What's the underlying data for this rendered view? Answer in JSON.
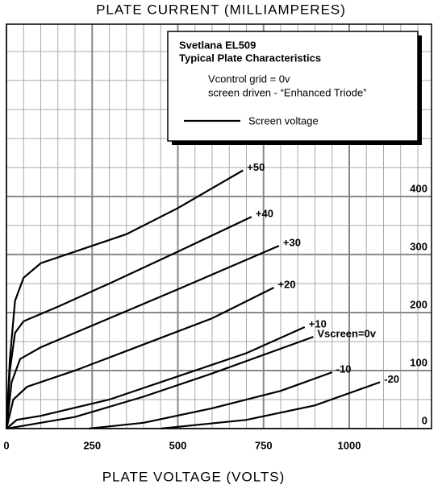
{
  "chart_data": {
    "type": "line",
    "y_label": "PLATE CURRENT (MILLIAMPERES)",
    "x_label": "PLATE VOLTAGE (VOLTS)",
    "xlim": [
      0,
      1240
    ],
    "ylim": [
      0,
      697
    ],
    "xticks": [
      0,
      250,
      500,
      750,
      1000
    ],
    "yticks": [
      0,
      100,
      200,
      300,
      400
    ],
    "grid": true,
    "legend": {
      "title": [
        "Svetlana EL509",
        "Typical Plate Characteristics"
      ],
      "notes": [
        "Vcontrol grid = 0v",
        "screen driven - “Enhanced Triode”"
      ],
      "entry": "Screen voltage"
    },
    "series": [
      {
        "name": "+50",
        "color": "#000000",
        "x": [
          0,
          10,
          25,
          50,
          100,
          200,
          350,
          500,
          690
        ],
        "values": [
          0,
          120,
          220,
          260,
          285,
          305,
          335,
          380,
          445
        ]
      },
      {
        "name": "+40",
        "color": "#000000",
        "x": [
          0,
          10,
          25,
          50,
          150,
          300,
          500,
          715
        ],
        "values": [
          0,
          100,
          165,
          185,
          210,
          250,
          305,
          365
        ]
      },
      {
        "name": "+30",
        "color": "#000000",
        "x": [
          0,
          15,
          40,
          100,
          300,
          500,
          795
        ],
        "values": [
          0,
          80,
          120,
          140,
          190,
          240,
          315
        ]
      },
      {
        "name": "+20",
        "color": "#000000",
        "x": [
          0,
          20,
          60,
          200,
          400,
          600,
          780
        ],
        "values": [
          0,
          50,
          72,
          100,
          145,
          190,
          243
        ]
      },
      {
        "name": "+10",
        "color": "#000000",
        "x": [
          0,
          30,
          100,
          300,
          500,
          700,
          870
        ],
        "values": [
          0,
          15,
          22,
          50,
          90,
          130,
          175
        ]
      },
      {
        "name": "Vscreen=0v",
        "color": "#000000",
        "x": [
          0,
          50,
          200,
          400,
          600,
          895
        ],
        "values": [
          0,
          5,
          20,
          55,
          95,
          158
        ]
      },
      {
        "name": "-10",
        "color": "#000000",
        "x": [
          240,
          400,
          600,
          800,
          950
        ],
        "values": [
          0,
          10,
          35,
          65,
          97
        ]
      },
      {
        "name": "-20",
        "color": "#000000",
        "x": [
          450,
          700,
          900,
          1090
        ],
        "values": [
          0,
          15,
          40,
          80
        ]
      }
    ]
  }
}
